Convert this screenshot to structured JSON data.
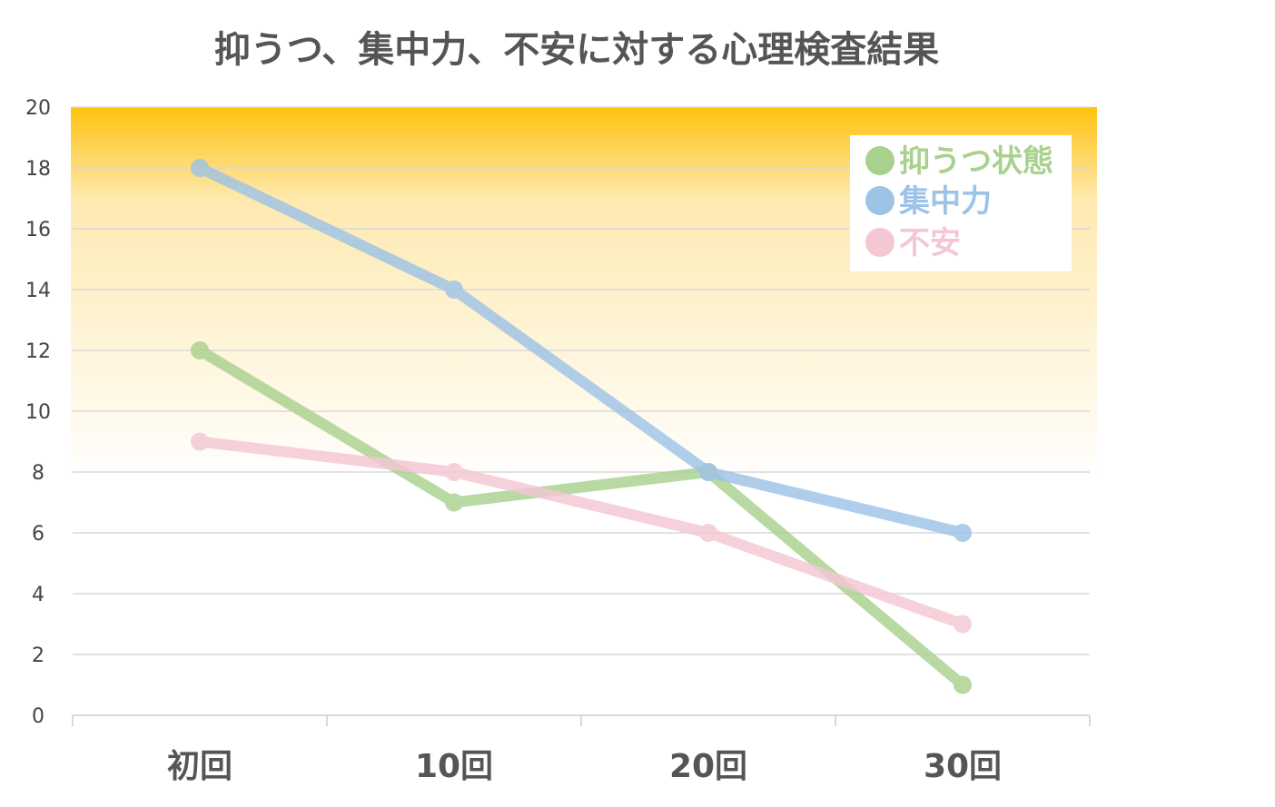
{
  "chart_data": {
    "type": "line",
    "title": "抑うつ、集中力、不安に対する心理検査結果",
    "categories": [
      "初回",
      "10回",
      "20回",
      "30回"
    ],
    "ylim": [
      0,
      20
    ],
    "yticks": [
      "0",
      "2",
      "4",
      "6",
      "8",
      "10",
      "12",
      "14",
      "16",
      "18",
      "20"
    ],
    "grid": true,
    "legend_position": "top-right",
    "background_gradient": [
      "#ffc20e",
      "#ffffff"
    ],
    "series": [
      {
        "name": "抑うつ状態",
        "color": "#a9d18e",
        "values": [
          12,
          7,
          8,
          1
        ]
      },
      {
        "name": "集中力",
        "color": "#9dc3e6",
        "values": [
          18,
          14,
          8,
          6
        ]
      },
      {
        "name": "不安",
        "color": "#f4c7d3",
        "values": [
          9,
          8,
          6,
          3
        ]
      }
    ]
  }
}
